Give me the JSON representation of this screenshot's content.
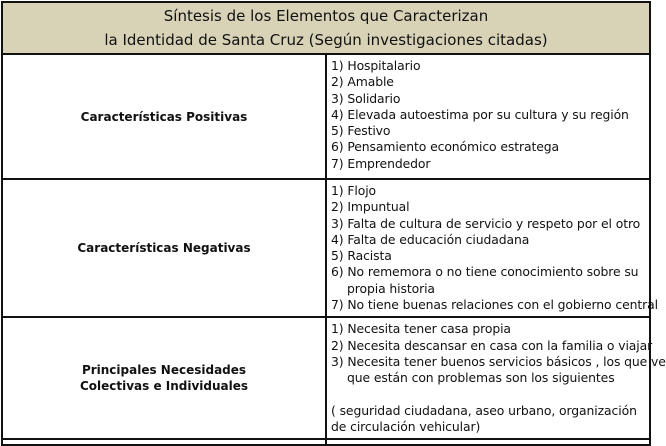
{
  "title": {
    "line1": "Síntesis de los Elementos que Caracterizan",
    "line2": "la Identidad de Santa Cruz (Según investigaciones citadas)"
  },
  "header_bg": "#d8d2b6",
  "rows": [
    {
      "label": "Características Positivas",
      "items": [
        "1) Hospitalario",
        "2) Amable",
        "3) Solidario",
        "4) Elevada autoestima por su cultura y su región",
        "5) Festivo",
        "6) Pensamiento económico estratega",
        "7) Emprendedor"
      ]
    },
    {
      "label": "Características Negativas",
      "items": [
        "1) Flojo",
        "2) Impuntual",
        "3) Falta de cultura de servicio y respeto por  el otro",
        "4) Falta de educación ciudadana",
        "5) Racista",
        "6) No rememora o no tiene conocimiento sobre su",
        "propia historia",
        "7) No tiene buenas relaciones con el gobierno central"
      ]
    },
    {
      "label_line1": "Principales Necesidades",
      "label_line2": "Colectivas e Individuales",
      "items": [
        "1) Necesita tener casa propia",
        "2) Necesita descansar en casa con la familia o viajar",
        "3) Necesita tener buenos servicios básicos , los que ve",
        "que están con problemas son los siguientes"
      ],
      "note": "( seguridad ciudadana, aseo urbano, organización de circulación vehicular)"
    }
  ]
}
